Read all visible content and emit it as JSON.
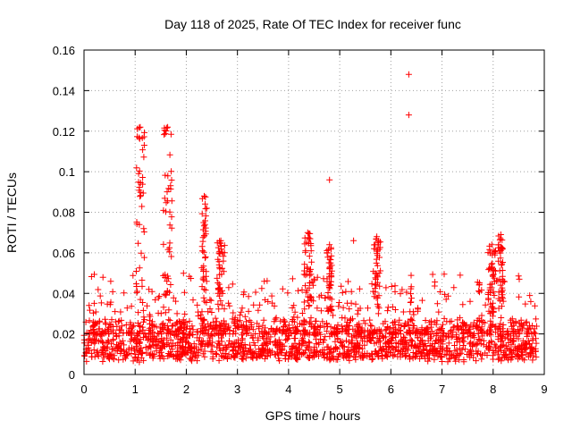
{
  "chart_data": {
    "type": "scatter",
    "title": "Day 118 of 2025, Rate Of TEC Index for receiver func",
    "xlabel": "GPS time / hours",
    "ylabel": "ROTI / TECUs",
    "xlim": [
      0,
      9
    ],
    "ylim": [
      0,
      0.16
    ],
    "grid": true,
    "marker": "+",
    "color": "#ff0000",
    "x_ticks": [
      "0",
      "1",
      "2",
      "3",
      "4",
      "5",
      "6",
      "7",
      "8",
      "9"
    ],
    "y_ticks": [
      "0",
      "0.02",
      "0.04",
      "0.06",
      "0.08",
      "0.1",
      "0.12",
      "0.14",
      "0.16"
    ],
    "baseline_band": {
      "x_range": [
        0,
        8.85
      ],
      "y_range": [
        0.008,
        0.026
      ],
      "point_count": 1600,
      "note": "dense cloud of ROTI values"
    },
    "peaks": [
      {
        "x": [
          1.02,
          1.18
        ],
        "y_max": 0.122
      },
      {
        "x": [
          1.55,
          1.72
        ],
        "y_max": 0.122
      },
      {
        "x": [
          2.3,
          2.4
        ],
        "y_max": 0.088
      },
      {
        "x": [
          2.6,
          2.75
        ],
        "y_max": 0.066
      },
      {
        "x": [
          4.3,
          4.45
        ],
        "y_max": 0.07
      },
      {
        "x": [
          4.75,
          4.85
        ],
        "y_max": 0.064
      },
      {
        "x": [
          5.65,
          5.8
        ],
        "y_max": 0.068
      },
      {
        "x": [
          7.9,
          8.05
        ],
        "y_max": 0.064
      },
      {
        "x": [
          8.1,
          8.2
        ],
        "y_max": 0.069
      }
    ],
    "outliers": [
      {
        "x": 6.35,
        "y": 0.148
      },
      {
        "x": 6.35,
        "y": 0.128
      },
      {
        "x": 4.8,
        "y": 0.096
      },
      {
        "x": 5.27,
        "y": 0.066
      }
    ]
  }
}
